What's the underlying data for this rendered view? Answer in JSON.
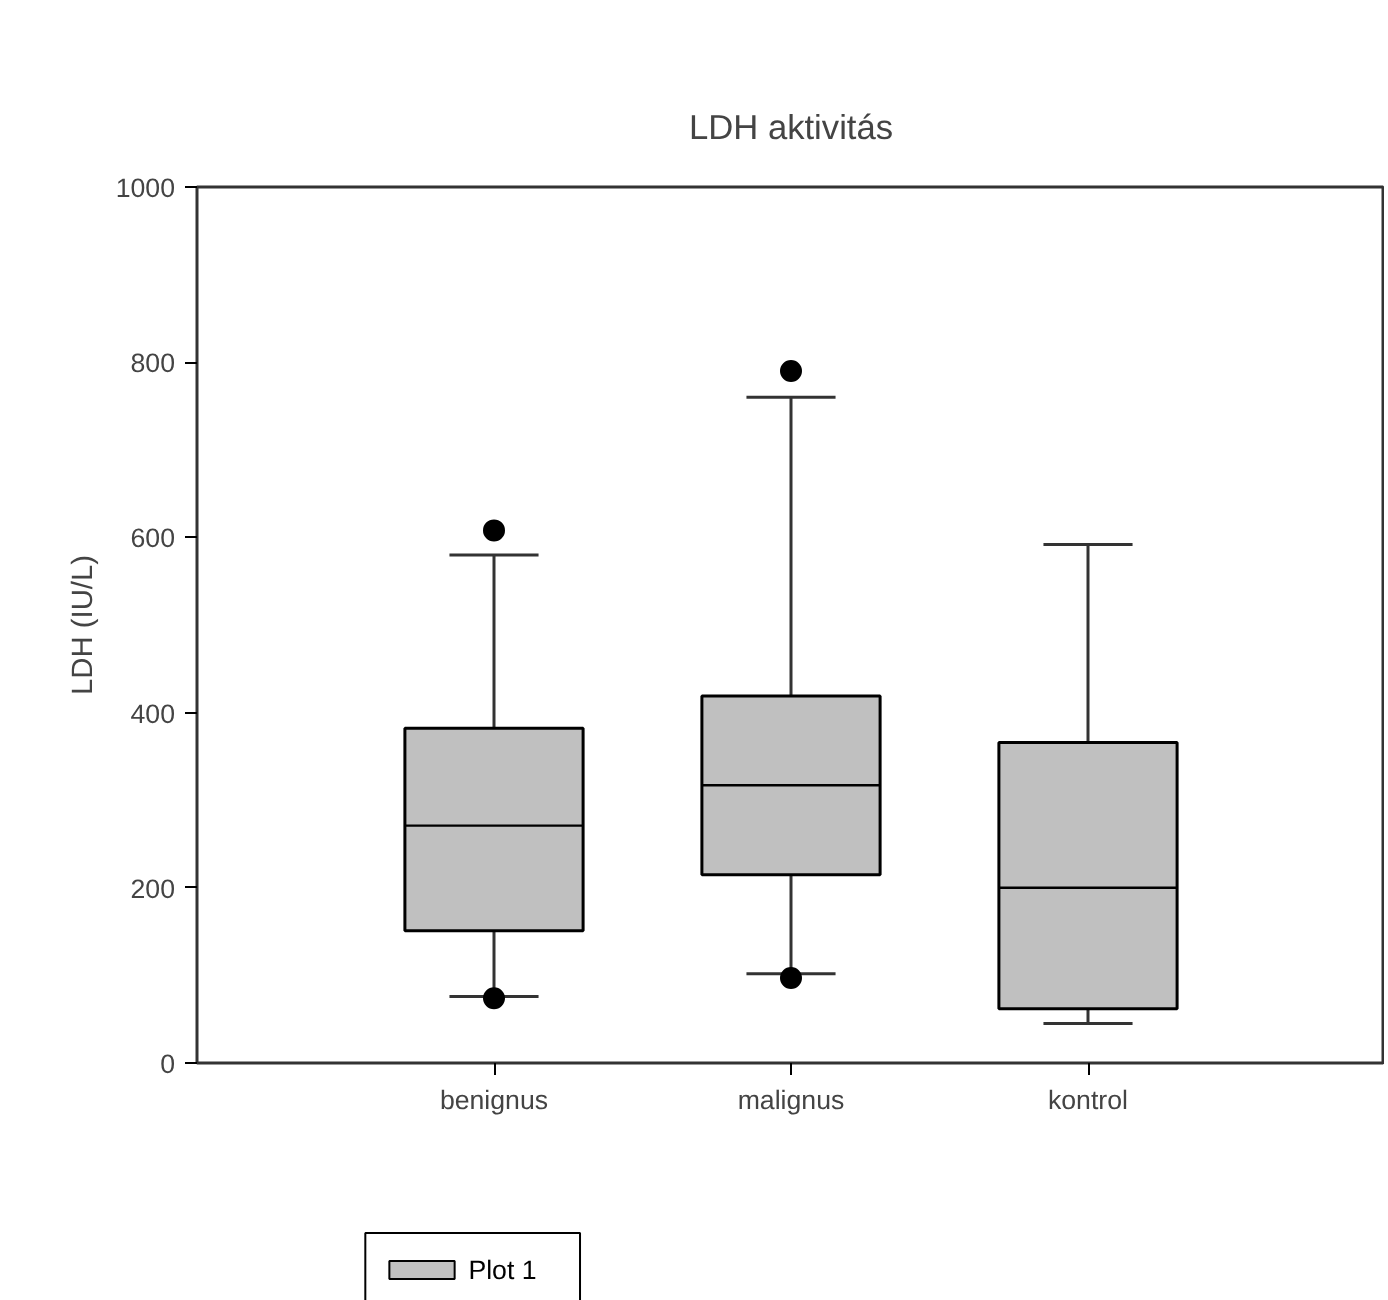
{
  "chart_data": {
    "type": "box",
    "title": "LDH aktivitás",
    "ylabel": "LDH (IU/L)",
    "categories": [
      "benignus",
      "malignus",
      "kontrol"
    ],
    "ylim": [
      0,
      1000
    ],
    "yticks": [
      0,
      200,
      400,
      600,
      800,
      1000
    ],
    "grid": false,
    "legend": "bottom left",
    "marker": "circle",
    "series": [
      {
        "name": "Plot 1",
        "color": "#c0c0c0",
        "boxes": [
          {
            "low": 76,
            "q1": 151,
            "median": 271,
            "q3": 382,
            "high": 580,
            "outliers": [
              608,
              74
            ]
          },
          {
            "low": 102,
            "q1": 215,
            "median": 317,
            "q3": 419,
            "high": 760,
            "outliers": [
              790,
              97
            ]
          },
          {
            "low": 45,
            "q1": 62,
            "median": 200,
            "q3": 366,
            "high": 592
          }
        ]
      }
    ]
  }
}
